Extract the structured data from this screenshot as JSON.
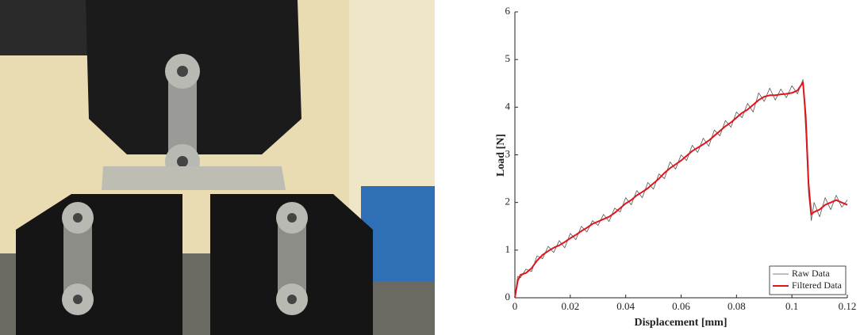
{
  "chart_data": {
    "type": "line",
    "xlabel": "Displacement [mm]",
    "ylabel": "Load [N]",
    "x": [
      0,
      0.001,
      0.002,
      0.004,
      0.006,
      0.008,
      0.01,
      0.012,
      0.014,
      0.016,
      0.018,
      0.02,
      0.022,
      0.024,
      0.026,
      0.028,
      0.03,
      0.032,
      0.034,
      0.036,
      0.038,
      0.04,
      0.042,
      0.044,
      0.046,
      0.048,
      0.05,
      0.052,
      0.054,
      0.056,
      0.058,
      0.06,
      0.062,
      0.064,
      0.066,
      0.068,
      0.07,
      0.072,
      0.074,
      0.076,
      0.078,
      0.08,
      0.082,
      0.084,
      0.086,
      0.088,
      0.09,
      0.092,
      0.094,
      0.096,
      0.098,
      0.1,
      0.102,
      0.104,
      0.105,
      0.106,
      0.107,
      0.108,
      0.11,
      0.112,
      0.114,
      0.116,
      0.118,
      0.12
    ],
    "series": [
      {
        "name": "Raw Data",
        "color": "#555555",
        "width": 0.8,
        "values": [
          0,
          0.45,
          0.42,
          0.6,
          0.55,
          0.88,
          0.82,
          1.08,
          0.95,
          1.2,
          1.05,
          1.35,
          1.22,
          1.5,
          1.38,
          1.62,
          1.52,
          1.75,
          1.6,
          1.88,
          1.8,
          2.1,
          1.95,
          2.25,
          2.1,
          2.42,
          2.28,
          2.6,
          2.5,
          2.85,
          2.7,
          3.0,
          2.88,
          3.2,
          3.05,
          3.35,
          3.18,
          3.52,
          3.4,
          3.72,
          3.58,
          3.9,
          3.78,
          4.08,
          3.9,
          4.3,
          4.12,
          4.4,
          4.15,
          4.38,
          4.2,
          4.45,
          4.28,
          4.58,
          3.5,
          2.2,
          1.62,
          2.0,
          1.7,
          2.1,
          1.85,
          2.15,
          1.9,
          2.05
        ]
      },
      {
        "name": "Filtered Data",
        "color": "#e0141b",
        "width": 2,
        "values": [
          0,
          0.35,
          0.48,
          0.52,
          0.62,
          0.78,
          0.9,
          0.98,
          1.05,
          1.1,
          1.17,
          1.25,
          1.32,
          1.4,
          1.47,
          1.55,
          1.6,
          1.65,
          1.7,
          1.78,
          1.88,
          1.98,
          2.05,
          2.15,
          2.22,
          2.3,
          2.4,
          2.5,
          2.62,
          2.72,
          2.8,
          2.88,
          2.98,
          3.08,
          3.15,
          3.22,
          3.3,
          3.4,
          3.5,
          3.6,
          3.68,
          3.78,
          3.88,
          3.95,
          4.05,
          4.15,
          4.22,
          4.25,
          4.25,
          4.27,
          4.28,
          4.3,
          4.35,
          4.52,
          3.8,
          2.4,
          1.75,
          1.8,
          1.85,
          1.95,
          2.0,
          2.05,
          2.0,
          1.95
        ]
      }
    ],
    "xlim": [
      0,
      0.12
    ],
    "xticks": [
      0,
      0.02,
      0.04,
      0.06,
      0.08,
      0.1,
      0.12
    ],
    "ylim": [
      0,
      6
    ],
    "yticks": [
      0,
      1,
      2,
      3,
      4,
      5,
      6
    ],
    "legend": "lower right"
  }
}
